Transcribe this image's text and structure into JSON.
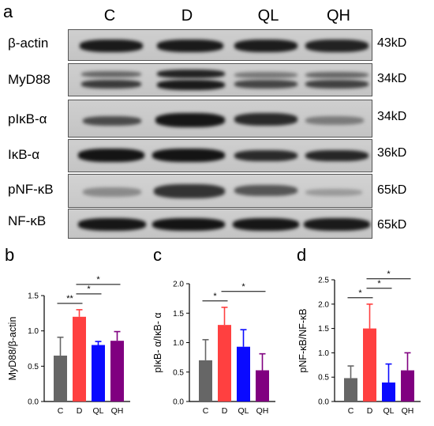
{
  "figure": {
    "panel_a": {
      "letter": "a",
      "lanes": [
        "C",
        "D",
        "QL",
        "QH"
      ],
      "rows": [
        {
          "label": "β-actin",
          "kd": "43kD"
        },
        {
          "label": "MyD88",
          "kd": "34kD"
        },
        {
          "label": "pIκB-α",
          "kd": "34kD"
        },
        {
          "label": "IκB-α",
          "kd": "36kD"
        },
        {
          "label": "pNF-κB",
          "kd": "65kD"
        },
        {
          "label": "NF-κB",
          "kd": "65kD"
        }
      ]
    }
  },
  "chart_data": [
    {
      "panel": "b",
      "type": "bar",
      "categories": [
        "C",
        "D",
        "QL",
        "QH"
      ],
      "values": [
        0.65,
        1.2,
        0.8,
        0.86
      ],
      "errors": [
        0.26,
        0.1,
        0.05,
        0.13
      ],
      "ylabel": "MyD88/β-actin",
      "ylim": [
        0,
        1.5
      ],
      "yticks": [
        "0.0",
        "0.5",
        "1.0",
        "1.5"
      ],
      "colors": [
        "#666666",
        "#ff4040",
        "#0a0aff",
        "#800080"
      ],
      "significance": [
        {
          "from": 0,
          "to": 1,
          "label": "**"
        },
        {
          "from": 1,
          "to": 2,
          "label": "*"
        },
        {
          "from": 1,
          "to": 3,
          "label": "*"
        }
      ]
    },
    {
      "panel": "c",
      "type": "bar",
      "categories": [
        "C",
        "D",
        "QL",
        "QH"
      ],
      "values": [
        0.7,
        1.3,
        0.93,
        0.53
      ],
      "errors": [
        0.35,
        0.3,
        0.29,
        0.28
      ],
      "ylabel": "pIκB- α/IκB- α",
      "ylim": [
        0,
        2.0
      ],
      "yticks": [
        "0.0",
        "0.5",
        "1.0",
        "1.5",
        "2.0"
      ],
      "colors": [
        "#666666",
        "#ff4040",
        "#0a0aff",
        "#800080"
      ],
      "significance": [
        {
          "from": 0,
          "to": 1,
          "label": "*"
        },
        {
          "from": 1,
          "to": 3,
          "label": "*"
        }
      ]
    },
    {
      "panel": "d",
      "type": "bar",
      "categories": [
        "C",
        "D",
        "QL",
        "QH"
      ],
      "values": [
        0.48,
        1.5,
        0.39,
        0.64
      ],
      "errors": [
        0.25,
        0.5,
        0.38,
        0.36
      ],
      "ylabel": "pNF-κB/NF-κB",
      "ylim": [
        0,
        2.5
      ],
      "yticks": [
        "0.0",
        "0.5",
        "1.0",
        "1.5",
        "2.0",
        "2.5"
      ],
      "colors": [
        "#666666",
        "#ff4040",
        "#0a0aff",
        "#800080"
      ],
      "significance": [
        {
          "from": 0,
          "to": 1,
          "label": "*"
        },
        {
          "from": 1,
          "to": 2,
          "label": "*"
        },
        {
          "from": 1,
          "to": 3,
          "label": "*"
        }
      ]
    }
  ]
}
